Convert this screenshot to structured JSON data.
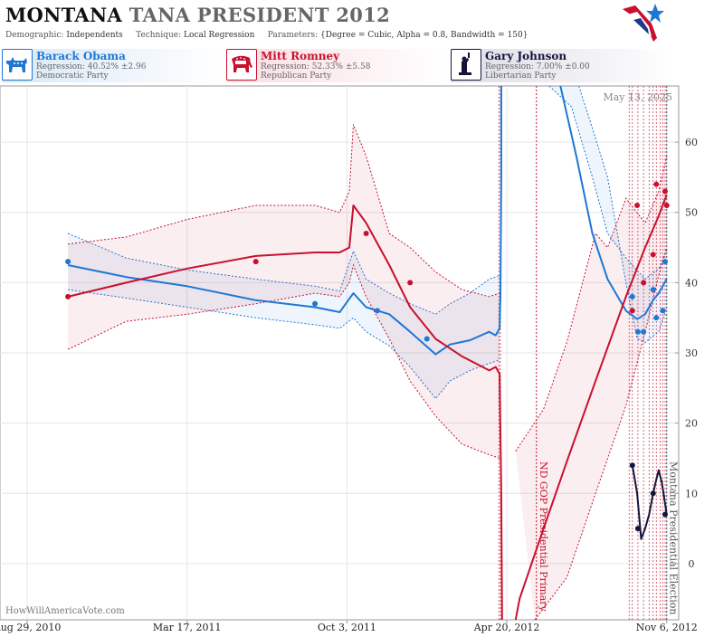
{
  "header": {
    "title_state": "MONTANA",
    "title_rest": "TANA PRESIDENT 2012",
    "demographic_label": "Demographic:",
    "demographic": "Independents",
    "technique_label": "Technique:",
    "technique": "Local Regression",
    "parameters_label": "Parameters:",
    "parameters": "{Degree = Cubic, Alpha = 0.8, Bandwidth = 150}"
  },
  "candidates": [
    {
      "name": "Barack Obama",
      "regression": "Regression: 40.52% ±2.96",
      "party": "Democratic Party",
      "color": "#1f77d4",
      "icon": "donkey-icon"
    },
    {
      "name": "Mitt Romney",
      "regression": "Regression: 52.33% ±5.58",
      "party": "Republican Party",
      "color": "#c8102e",
      "icon": "elephant-icon"
    },
    {
      "name": "Gary Johnson",
      "regression": "Regression: 7.00% ±0.00",
      "party": "Libertarian Party",
      "color": "#14143c",
      "icon": "liberty-statue-icon"
    }
  ],
  "footer": {
    "watermark": "HowWillAmericaVote.com"
  },
  "chart_data": {
    "type": "line",
    "date_stamp": "May 13, 2025",
    "x_tick_labels": [
      "Aug 29, 2010",
      "Mar 17, 2011",
      "Oct 3, 2011",
      "Apr 20, 2012",
      "Nov 6, 2012"
    ],
    "x_ticks": [
      "2010-08-29",
      "2011-03-17",
      "2011-10-03",
      "2012-04-20",
      "2012-11-06"
    ],
    "xlim": [
      "2010-07-26",
      "2012-11-21"
    ],
    "ylim": [
      -8,
      68
    ],
    "y_ticks": [
      0,
      10,
      20,
      30,
      40,
      50,
      60
    ],
    "grid": true,
    "events": [
      {
        "label": "ND GOP Presidential Primary",
        "date": "2012-05-27",
        "color": "#c8102e"
      },
      {
        "label": "Montana Presidential Election",
        "date": "2012-11-06",
        "color": "#555555"
      }
    ],
    "poll_dates": [
      "2012-04-10",
      "2012-04-12",
      "2012-09-20",
      "2012-09-24",
      "2012-10-01",
      "2012-10-08",
      "2012-10-15",
      "2012-10-20",
      "2012-10-24",
      "2012-10-29",
      "2012-11-01",
      "2012-11-04"
    ],
    "series": [
      {
        "name": "Barack Obama",
        "color": "#1f77d4",
        "line": [
          [
            "2010-10-19",
            42.5
          ],
          [
            "2010-12-31",
            40.8
          ],
          [
            "2011-03-17",
            39.5
          ],
          [
            "2011-06-11",
            37.5
          ],
          [
            "2011-08-24",
            36.5
          ],
          [
            "2011-09-24",
            35.8
          ],
          [
            "2011-10-11",
            38.5
          ],
          [
            "2011-10-27",
            36.5
          ],
          [
            "2011-11-25",
            35.5
          ],
          [
            "2011-12-21",
            33.0
          ],
          [
            "2012-01-22",
            29.8
          ],
          [
            "2012-02-09",
            31.2
          ],
          [
            "2012-03-05",
            31.8
          ],
          [
            "2012-03-29",
            33.0
          ],
          [
            "2012-04-06",
            32.5
          ],
          [
            "2012-04-11",
            33.5
          ],
          [
            "2012-04-12",
            38.0
          ],
          [
            "2012-04-13",
            55.0
          ],
          [
            "2012-04-13",
            75.0
          ]
        ],
        "line2": [
          [
            "2012-06-26",
            75.0
          ],
          [
            "2012-07-16",
            58.0
          ],
          [
            "2012-08-05",
            47.0
          ],
          [
            "2012-08-24",
            40.5
          ],
          [
            "2012-09-16",
            36.0
          ],
          [
            "2012-09-30",
            34.8
          ],
          [
            "2012-10-10",
            35.5
          ],
          [
            "2012-10-20",
            37.5
          ],
          [
            "2012-10-27",
            38.5
          ],
          [
            "2012-11-06",
            40.5
          ]
        ],
        "upper": [
          [
            "2010-10-19",
            47.0
          ],
          [
            "2010-12-31",
            43.5
          ],
          [
            "2011-03-17",
            41.8
          ],
          [
            "2011-06-11",
            40.5
          ],
          [
            "2011-08-24",
            39.5
          ],
          [
            "2011-09-24",
            38.8
          ],
          [
            "2011-10-11",
            44.5
          ],
          [
            "2011-10-27",
            40.5
          ],
          [
            "2011-11-25",
            38.5
          ],
          [
            "2011-12-21",
            37.0
          ],
          [
            "2012-01-22",
            35.5
          ],
          [
            "2012-02-09",
            37.0
          ],
          [
            "2012-03-05",
            38.5
          ],
          [
            "2012-03-29",
            40.5
          ],
          [
            "2012-04-11",
            41.0
          ]
        ],
        "lower": [
          [
            "2010-10-19",
            39.0
          ],
          [
            "2010-12-31",
            37.8
          ],
          [
            "2011-03-17",
            36.5
          ],
          [
            "2011-06-11",
            35.0
          ],
          [
            "2011-08-24",
            34.0
          ],
          [
            "2011-09-24",
            33.5
          ],
          [
            "2011-10-11",
            35.0
          ],
          [
            "2011-10-27",
            33.0
          ],
          [
            "2011-11-25",
            31.0
          ],
          [
            "2011-12-21",
            28.0
          ],
          [
            "2012-01-22",
            23.5
          ],
          [
            "2012-02-09",
            26.0
          ],
          [
            "2012-03-05",
            27.5
          ],
          [
            "2012-03-29",
            28.5
          ],
          [
            "2012-04-11",
            29.0
          ]
        ],
        "upper2": [
          [
            "2012-06-12",
            75.0
          ],
          [
            "2012-07-10",
            65.0
          ],
          [
            "2012-08-05",
            55.0
          ],
          [
            "2012-08-24",
            47.0
          ],
          [
            "2012-09-16",
            43.5
          ],
          [
            "2012-10-10",
            40.5
          ],
          [
            "2012-10-27",
            42.0
          ],
          [
            "2012-11-06",
            44.5
          ]
        ],
        "lower2": [
          [
            "2012-07-19",
            75.0
          ],
          [
            "2012-08-05",
            62.0
          ],
          [
            "2012-08-24",
            55.0
          ],
          [
            "2012-09-16",
            40.0
          ],
          [
            "2012-09-30",
            32.0
          ],
          [
            "2012-10-10",
            31.5
          ],
          [
            "2012-10-27",
            33.0
          ],
          [
            "2012-11-06",
            36.5
          ]
        ],
        "points": [
          [
            "2010-10-19",
            43.0
          ],
          [
            "2011-08-24",
            37.0
          ],
          [
            "2011-11-10",
            36.0
          ],
          [
            "2012-01-11",
            32.0
          ],
          [
            "2012-09-24",
            38.0
          ],
          [
            "2012-10-01",
            33.0
          ],
          [
            "2012-10-08",
            33.0
          ],
          [
            "2012-10-20",
            39.0
          ],
          [
            "2012-10-24",
            35.0
          ],
          [
            "2012-11-01",
            36.0
          ],
          [
            "2012-11-04",
            43.0
          ]
        ]
      },
      {
        "name": "Mitt Romney",
        "color": "#c8102e",
        "line": [
          [
            "2010-10-19",
            38.0
          ],
          [
            "2010-12-31",
            40.0
          ],
          [
            "2011-03-17",
            42.0
          ],
          [
            "2011-06-11",
            43.8
          ],
          [
            "2011-08-24",
            44.3
          ],
          [
            "2011-09-24",
            44.3
          ],
          [
            "2011-10-06",
            45.0
          ],
          [
            "2011-10-11",
            51.0
          ],
          [
            "2011-10-27",
            48.5
          ],
          [
            "2011-11-25",
            42.5
          ],
          [
            "2011-12-21",
            36.5
          ],
          [
            "2012-01-22",
            32.0
          ],
          [
            "2012-02-24",
            29.5
          ],
          [
            "2012-03-29",
            27.5
          ],
          [
            "2012-04-06",
            28.0
          ],
          [
            "2012-04-11",
            27.0
          ],
          [
            "2012-04-13",
            10.0
          ],
          [
            "2012-04-14",
            -10.0
          ]
        ],
        "line2": [
          [
            "2012-05-01",
            -10.0
          ],
          [
            "2012-05-06",
            -5.0
          ],
          [
            "2012-06-05",
            5.0
          ],
          [
            "2012-07-04",
            14.5
          ],
          [
            "2012-08-09",
            26.0
          ],
          [
            "2012-09-16",
            38.0
          ],
          [
            "2012-10-10",
            45.0
          ],
          [
            "2012-10-27",
            49.5
          ],
          [
            "2012-11-06",
            52.5
          ]
        ],
        "upper": [
          [
            "2010-10-19",
            45.5
          ],
          [
            "2010-12-31",
            46.5
          ],
          [
            "2011-03-17",
            49.0
          ],
          [
            "2011-06-11",
            51.0
          ],
          [
            "2011-08-24",
            51.0
          ],
          [
            "2011-09-24",
            50.0
          ],
          [
            "2011-10-06",
            53.0
          ],
          [
            "2011-10-11",
            62.5
          ],
          [
            "2011-10-27",
            58.0
          ],
          [
            "2011-11-25",
            47.0
          ],
          [
            "2011-12-21",
            45.0
          ],
          [
            "2012-01-22",
            41.5
          ],
          [
            "2012-02-24",
            39.0
          ],
          [
            "2012-03-29",
            38.0
          ],
          [
            "2012-04-11",
            38.5
          ]
        ],
        "lower": [
          [
            "2010-10-19",
            30.5
          ],
          [
            "2010-12-31",
            34.5
          ],
          [
            "2011-03-17",
            35.5
          ],
          [
            "2011-06-11",
            37.0
          ],
          [
            "2011-08-24",
            38.5
          ],
          [
            "2011-09-24",
            38.0
          ],
          [
            "2011-10-06",
            40.0
          ],
          [
            "2011-10-11",
            42.5
          ],
          [
            "2011-10-27",
            38.0
          ],
          [
            "2011-11-25",
            32.0
          ],
          [
            "2011-12-21",
            26.0
          ],
          [
            "2012-01-22",
            21.0
          ],
          [
            "2012-02-24",
            17.0
          ],
          [
            "2012-03-29",
            15.5
          ],
          [
            "2012-04-11",
            15.0
          ]
        ],
        "upper2": [
          [
            "2012-05-01",
            16.0
          ],
          [
            "2012-06-05",
            22.0
          ],
          [
            "2012-07-04",
            31.5
          ],
          [
            "2012-08-09",
            47.0
          ],
          [
            "2012-08-24",
            45.0
          ],
          [
            "2012-09-16",
            52.0
          ],
          [
            "2012-10-10",
            48.5
          ],
          [
            "2012-10-27",
            53.0
          ],
          [
            "2012-11-06",
            58.0
          ]
        ],
        "lower2": [
          [
            "2012-05-25",
            -8.0
          ],
          [
            "2012-07-04",
            -2.0
          ],
          [
            "2012-08-09",
            10.0
          ],
          [
            "2012-09-16",
            22.5
          ],
          [
            "2012-10-10",
            33.0
          ],
          [
            "2012-10-27",
            41.0
          ],
          [
            "2012-11-06",
            45.0
          ]
        ],
        "points": [
          [
            "2010-10-19",
            38.0
          ],
          [
            "2011-06-11",
            43.0
          ],
          [
            "2011-10-27",
            47.0
          ],
          [
            "2011-12-21",
            40.0
          ],
          [
            "2012-09-24",
            36.0
          ],
          [
            "2012-09-30",
            51.0
          ],
          [
            "2012-10-08",
            40.0
          ],
          [
            "2012-10-20",
            44.0
          ],
          [
            "2012-10-24",
            54.0
          ],
          [
            "2012-11-04",
            53.0
          ],
          [
            "2012-11-06",
            51.0
          ]
        ]
      },
      {
        "name": "Gary Johnson",
        "color": "#14143c",
        "line": [
          [
            "2012-09-24",
            14.0
          ],
          [
            "2012-09-30",
            10.0
          ],
          [
            "2012-10-05",
            3.5
          ],
          [
            "2012-10-10",
            5.0
          ],
          [
            "2012-10-15",
            7.0
          ],
          [
            "2012-10-20",
            10.0
          ],
          [
            "2012-10-24",
            12.0
          ],
          [
            "2012-10-27",
            13.3
          ],
          [
            "2012-10-31",
            11.5
          ],
          [
            "2012-11-04",
            8.5
          ],
          [
            "2012-11-06",
            7.0
          ]
        ],
        "points": [
          [
            "2012-09-24",
            14.0
          ],
          [
            "2012-10-01",
            5.0
          ],
          [
            "2012-10-20",
            10.0
          ],
          [
            "2012-11-04",
            7.0
          ]
        ]
      }
    ]
  }
}
